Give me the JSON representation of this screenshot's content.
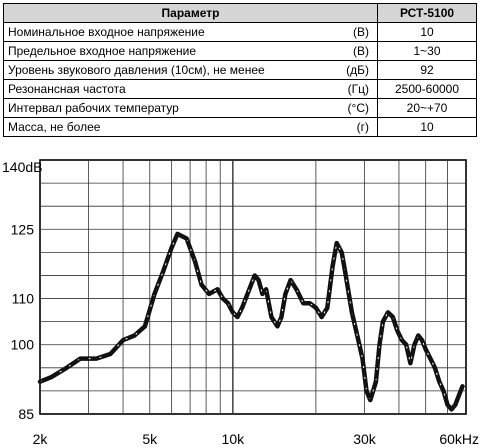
{
  "table": {
    "header": {
      "param": "Параметр",
      "model": "РСТ-5100"
    },
    "rows": [
      {
        "param": "Номинальное входное напряжение",
        "unit": "(В)",
        "value": "10"
      },
      {
        "param": "Предельное входное напряжение",
        "unit": "(В)",
        "value": "1~30"
      },
      {
        "param": "Уровень звукового давления (10см), не менее",
        "unit": "(дБ)",
        "value": "92"
      },
      {
        "param": "Резонансная частота",
        "unit": "(Гц)",
        "value": "2500-60000"
      },
      {
        "param": "Интервал рабочих температур",
        "unit": "(°C)",
        "value": "20~+70"
      },
      {
        "param": "Масса, не более",
        "unit": "(г)",
        "value": "10"
      }
    ]
  },
  "chart_data": {
    "type": "line",
    "x_scale": "log",
    "xlim": [
      2000,
      70000
    ],
    "ylim": [
      85,
      140
    ],
    "x_ticks": [
      {
        "value": 2000,
        "label": "2k"
      },
      {
        "value": 5000,
        "label": "5k"
      },
      {
        "value": 10000,
        "label": "10k"
      },
      {
        "value": 30000,
        "label": "30k"
      },
      {
        "value": 60000,
        "label": "60kHz"
      }
    ],
    "y_ticks": [
      {
        "value": 85,
        "label": "85"
      },
      {
        "value": 100,
        "label": "100"
      },
      {
        "value": 110,
        "label": "110"
      },
      {
        "value": 125,
        "label": "125"
      },
      {
        "value": 140,
        "label": "140dB"
      }
    ],
    "grid": true,
    "series": [
      {
        "color": "#111111",
        "x": [
          2000,
          2200,
          2500,
          2800,
          3200,
          3600,
          4000,
          4400,
          4800,
          5200,
          5600,
          6000,
          6300,
          6800,
          7300,
          7700,
          8200,
          8800,
          9200,
          9600,
          10000,
          10400,
          10800,
          11300,
          12000,
          12400,
          12800,
          13200,
          13800,
          14500,
          15000,
          15500,
          16200,
          17000,
          18000,
          19000,
          20000,
          21000,
          22000,
          23000,
          23800,
          24800,
          25500,
          27000,
          28500,
          29500,
          30500,
          31500,
          33000,
          34000,
          35000,
          36500,
          38000,
          39500,
          41000,
          42500,
          44000,
          45500,
          47000,
          48500,
          50000,
          52000,
          54000,
          56000,
          58000,
          60000,
          62000,
          64000,
          66000,
          68000
        ],
        "y": [
          92,
          93,
          95,
          97,
          97,
          98,
          101,
          102,
          104,
          111,
          116,
          121,
          124,
          123,
          118,
          113,
          111,
          112,
          110,
          109,
          107,
          106,
          108,
          111,
          115,
          114,
          111,
          112,
          106,
          104,
          106,
          111,
          114,
          112,
          109,
          109,
          108,
          106,
          108,
          117,
          122,
          120,
          116,
          107,
          101,
          97,
          90,
          88,
          92,
          100,
          105,
          107,
          106,
          103,
          101,
          100,
          96,
          100,
          102,
          101,
          99,
          97,
          95,
          92,
          90,
          87,
          86,
          87,
          89,
          91
        ]
      }
    ]
  }
}
